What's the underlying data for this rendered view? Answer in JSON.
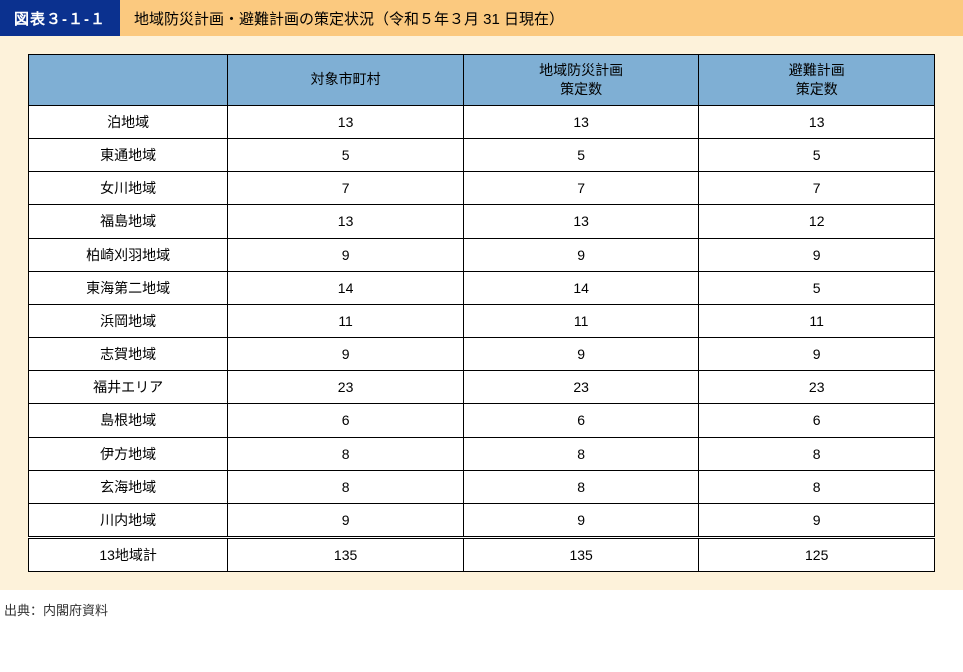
{
  "colors": {
    "badge_bg": "#0b318f",
    "badge_fg": "#ffffff",
    "titlebar_bg": "#fbc97f",
    "outer_bg": "#fdf2da",
    "th_bg": "#7fafd4",
    "border": "#000000",
    "text": "#000000",
    "source_text": "#333333"
  },
  "header": {
    "badge": "図表３-１-１",
    "title": "地域防災計画・避難計画の策定状況（令和５年３月 31 日現在）"
  },
  "table": {
    "columns": [
      "",
      "対象市町村",
      "地域防災計画\n策定数",
      "避難計画\n策定数"
    ],
    "col_widths_pct": [
      22,
      26,
      26,
      26
    ],
    "rows": [
      {
        "label": "泊地域",
        "v": [
          "13",
          "13",
          "13"
        ]
      },
      {
        "label": "東通地域",
        "v": [
          "5",
          "5",
          "5"
        ]
      },
      {
        "label": "女川地域",
        "v": [
          "7",
          "7",
          "7"
        ]
      },
      {
        "label": "福島地域",
        "v": [
          "13",
          "13",
          "12"
        ]
      },
      {
        "label": "柏崎刈羽地域",
        "v": [
          "9",
          "9",
          "9"
        ]
      },
      {
        "label": "東海第二地域",
        "v": [
          "14",
          "14",
          "5"
        ]
      },
      {
        "label": "浜岡地域",
        "v": [
          "11",
          "11",
          "11"
        ]
      },
      {
        "label": "志賀地域",
        "v": [
          "9",
          "9",
          "9"
        ]
      },
      {
        "label": "福井エリア",
        "v": [
          "23",
          "23",
          "23"
        ]
      },
      {
        "label": "島根地域",
        "v": [
          "6",
          "6",
          "6"
        ]
      },
      {
        "label": "伊方地域",
        "v": [
          "8",
          "8",
          "8"
        ]
      },
      {
        "label": "玄海地域",
        "v": [
          "8",
          "8",
          "8"
        ]
      },
      {
        "label": "川内地域",
        "v": [
          "9",
          "9",
          "9"
        ]
      }
    ],
    "total": {
      "label": "13地域計",
      "v": [
        "135",
        "135",
        "125"
      ]
    }
  },
  "source": "出典：内閣府資料"
}
